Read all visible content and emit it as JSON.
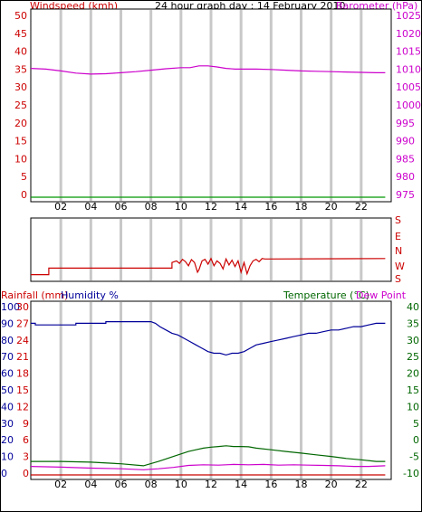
{
  "page": {
    "title": "24 hour graph day : 14 February 2010"
  },
  "colors": {
    "wind": "#cc0000",
    "baro": "#cc00cc",
    "rain": "#cc0000",
    "humidity": "#000099",
    "temperature": "#006600",
    "dewpoint": "#cc00cc",
    "grid": "#c8c8c8"
  },
  "chart_data": [
    {
      "id": "wind_baro",
      "type": "line",
      "title": "24 hour graph day : 14 February 2010",
      "left_axis_label": "Windspeed (kmh)",
      "right_axis_label": "Barometer (hPa)",
      "left_ticks": [
        "50",
        "45",
        "40",
        "35",
        "30",
        "25",
        "20",
        "15",
        "10",
        "5",
        "0"
      ],
      "right_ticks": [
        "1025",
        "1020",
        "1015",
        "1010",
        "1005",
        "1000",
        "995",
        "990",
        "985",
        "980",
        "975"
      ],
      "x_ticks": [
        "02",
        "04",
        "06",
        "08",
        "10",
        "12",
        "14",
        "16",
        "18",
        "20",
        "22"
      ],
      "xlim": [
        0,
        24
      ],
      "left_ylim": [
        0,
        50
      ],
      "right_ylim": [
        975,
        1025
      ],
      "series": [
        {
          "key": "barometer",
          "axis": "right",
          "x": [
            0,
            1,
            2,
            3,
            4,
            5,
            6,
            7,
            8,
            9,
            10,
            10.6,
            11.2,
            11.8,
            12.4,
            13,
            13.6,
            14.2,
            15,
            16,
            17,
            18,
            19,
            20,
            21,
            22,
            23,
            23.6
          ],
          "values": [
            1010.2,
            1010.0,
            1009.5,
            1008.9,
            1008.6,
            1008.7,
            1009.0,
            1009.3,
            1009.7,
            1010.1,
            1010.4,
            1010.4,
            1010.9,
            1010.9,
            1010.6,
            1010.2,
            1010.0,
            1010.0,
            1010.0,
            1009.9,
            1009.7,
            1009.5,
            1009.4,
            1009.3,
            1009.2,
            1009.1,
            1009.0,
            1009.0
          ]
        },
        {
          "key": "windspeed",
          "axis": "left",
          "x": [
            0,
            23.6
          ],
          "values": [
            0,
            0
          ]
        }
      ]
    },
    {
      "id": "wind_direction",
      "type": "line",
      "right_ticks": [
        "S",
        "E",
        "N",
        "W",
        "S"
      ],
      "x_ticks": [
        "02",
        "04",
        "06",
        "08",
        "10",
        "12",
        "14",
        "16",
        "18",
        "20",
        "22"
      ],
      "xlim": [
        0,
        24
      ],
      "ylim": [
        0,
        360
      ],
      "series": [
        {
          "key": "direction",
          "x": [
            0,
            1.2,
            1.2,
            9.4,
            9.4,
            9.7,
            9.9,
            10.1,
            10.3,
            10.5,
            10.7,
            10.9,
            11.1,
            11.2,
            11.4,
            11.6,
            11.8,
            12.0,
            12.2,
            12.4,
            12.6,
            12.8,
            13.0,
            13.2,
            13.4,
            13.6,
            13.8,
            14.0,
            14.2,
            14.4,
            14.6,
            14.8,
            15.0,
            15.2,
            15.4,
            15.6,
            23.6
          ],
          "values": [
            25,
            25,
            65,
            65,
            100,
            110,
            95,
            120,
            105,
            80,
            118,
            100,
            40,
            55,
            110,
            120,
            90,
            125,
            80,
            110,
            95,
            60,
            122,
            85,
            115,
            75,
            110,
            40,
            100,
            30,
            80,
            110,
            120,
            105,
            125,
            122,
            125
          ]
        }
      ]
    },
    {
      "id": "rain_hum_temp",
      "type": "line",
      "rain_axis_label": "Rainfall (mm)",
      "humidity_axis_label": "Humidity %",
      "temperature_label": "Temperature (°C)",
      "dewpoint_label": "Dew Point",
      "humidity_ticks": [
        "100",
        "90",
        "80",
        "70",
        "60",
        "50",
        "40",
        "30",
        "20",
        "10",
        "0"
      ],
      "rain_ticks": [
        "30",
        "27",
        "24",
        "21",
        "18",
        "15",
        "12",
        "9",
        "6",
        "3",
        "0"
      ],
      "temp_ticks": [
        "40",
        "35",
        "30",
        "25",
        "20",
        "15",
        "10",
        "5",
        "0",
        "-5",
        "-10"
      ],
      "x_ticks": [
        "02",
        "04",
        "06",
        "08",
        "10",
        "12",
        "14",
        "16",
        "18",
        "20",
        "22"
      ],
      "xlim": [
        0,
        24
      ],
      "humidity_ylim": [
        0,
        100
      ],
      "rain_ylim": [
        0,
        30
      ],
      "temp_ylim": [
        -10,
        40
      ],
      "series": [
        {
          "key": "humidity",
          "axis": "humidity",
          "x": [
            0,
            0.3,
            0.3,
            3,
            3,
            5,
            5,
            8,
            8.3,
            8.6,
            9,
            9.4,
            9.8,
            10.2,
            10.6,
            11,
            11.4,
            11.8,
            12.2,
            12.6,
            13,
            13.4,
            13.8,
            14.2,
            14.6,
            15,
            15.5,
            16,
            16.5,
            17,
            17.5,
            18,
            18.5,
            19,
            19.5,
            20,
            20.5,
            21,
            21.5,
            22,
            22.5,
            23,
            23.6
          ],
          "values": [
            90,
            90,
            89,
            89,
            90,
            90,
            91,
            91,
            90,
            88,
            86,
            84,
            83,
            81,
            79,
            77,
            75,
            73,
            72,
            72,
            71,
            72,
            72,
            73,
            75,
            77,
            78,
            79,
            80,
            81,
            82,
            83,
            84,
            84,
            85,
            86,
            86,
            87,
            88,
            88,
            89,
            90,
            90
          ]
        },
        {
          "key": "temperature",
          "axis": "temp",
          "x": [
            0,
            2,
            4,
            6,
            7.5,
            8.5,
            9.5,
            10.5,
            11,
            11.5,
            12,
            12.5,
            13,
            13.5,
            14,
            14.5,
            15,
            16,
            17,
            18,
            19,
            20,
            21,
            22,
            23,
            23.6
          ],
          "values": [
            -6.5,
            -6.5,
            -6.7,
            -7.2,
            -7.8,
            -6.5,
            -5,
            -3.5,
            -3,
            -2.5,
            -2.2,
            -2,
            -1.8,
            -2,
            -2,
            -2.1,
            -2.5,
            -3,
            -3.5,
            -4,
            -4.5,
            -5,
            -5.6,
            -6,
            -6.5,
            -6.5
          ]
        },
        {
          "key": "dewpoint",
          "axis": "temp",
          "x": [
            0,
            2,
            4,
            6,
            7.5,
            8.5,
            9.5,
            10.5,
            11.5,
            12.5,
            13.5,
            14.5,
            15.5,
            16.5,
            17.5,
            18.5,
            19.5,
            20.5,
            21.5,
            22.5,
            23.6
          ],
          "values": [
            -8,
            -8.2,
            -8.5,
            -8.7,
            -9,
            -8.7,
            -8.3,
            -7.7,
            -7.5,
            -7.6,
            -7.4,
            -7.5,
            -7.4,
            -7.6,
            -7.5,
            -7.6,
            -7.7,
            -7.8,
            -8,
            -8,
            -7.8
          ]
        },
        {
          "key": "rainfall",
          "axis": "rain",
          "x": [
            0,
            23.6
          ],
          "values": [
            0,
            0
          ]
        }
      ]
    }
  ]
}
